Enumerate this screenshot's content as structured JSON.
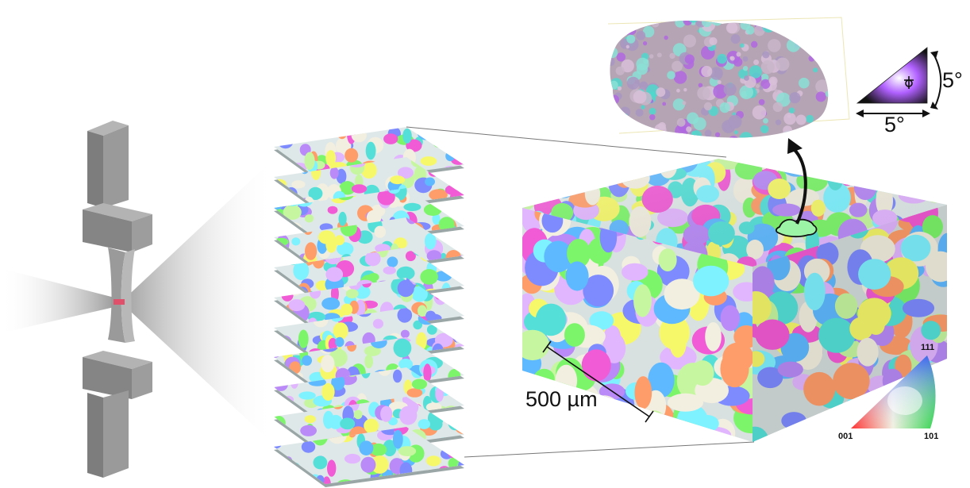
{
  "scale_bar_label": "500 µm",
  "ipf_legend": {
    "corner_top": "111",
    "corner_left": "001",
    "corner_right": "101"
  },
  "misorientation_legend": {
    "vertical_angle": "5°",
    "horizontal_angle": "5°"
  },
  "colors": {
    "specimen_gray": "#8c8c8c",
    "beam_red": "#e0506a",
    "grain_outline_green": "#7ee08a",
    "grain_palette": [
      "#54e0d8",
      "#7d8bff",
      "#f25bd6",
      "#f6f86a",
      "#7cf56a",
      "#b98af8",
      "#f2efe0",
      "#5fb9ff",
      "#ff9d6a",
      "#c6f7a0",
      "#e2b6ff",
      "#7ef2ff"
    ]
  }
}
